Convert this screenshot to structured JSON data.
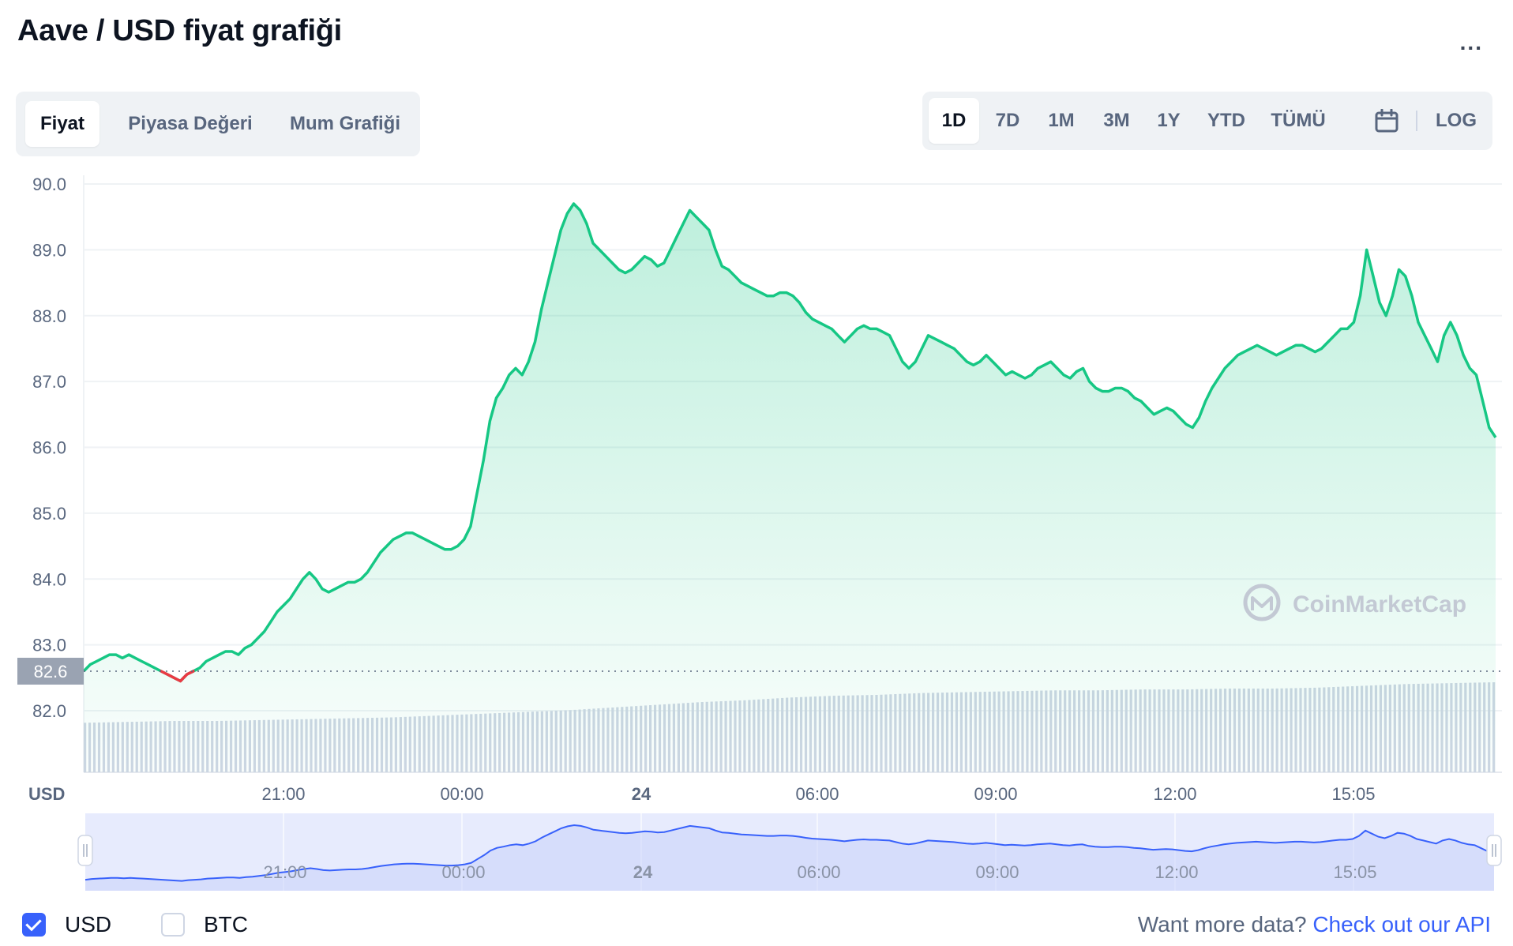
{
  "title": "Aave / USD fiyat grafiği",
  "more_label": "...",
  "view_tabs": [
    {
      "label": "Fiyat",
      "active": true
    },
    {
      "label": "Piyasa Değeri",
      "active": false
    },
    {
      "label": "Mum Grafiği",
      "active": false
    }
  ],
  "range_tabs": [
    {
      "label": "1D",
      "active": true
    },
    {
      "label": "7D",
      "active": false
    },
    {
      "label": "1M",
      "active": false
    },
    {
      "label": "3M",
      "active": false
    },
    {
      "label": "1Y",
      "active": false
    },
    {
      "label": "YTD",
      "active": false
    },
    {
      "label": "TÜMÜ",
      "active": false
    }
  ],
  "calendar_icon": "calendar-icon",
  "log_label": "LOG",
  "watermark": "CoinMarketCap",
  "colors": {
    "line": "#16c784",
    "down": "#ea3943",
    "volume": "#cfd6e4",
    "nav_line": "#3861fb",
    "nav_fill": "#e3e7fd",
    "accent": "#3861fb"
  },
  "chart_data": {
    "type": "line",
    "y_unit": "USD",
    "ylim": [
      82.0,
      90.0
    ],
    "y_ticks": [
      "90.0",
      "89.0",
      "88.0",
      "87.0",
      "86.0",
      "85.0",
      "84.0",
      "83.0",
      "82.0"
    ],
    "x_ticks": [
      "21:00",
      "00:00",
      "24",
      "06:00",
      "09:00",
      "12:00",
      "15:05"
    ],
    "open_price": 82.6,
    "open_label": "82.6",
    "grid": true,
    "series": [
      {
        "values": [
          82.6,
          82.7,
          82.75,
          82.8,
          82.85,
          82.85,
          82.8,
          82.85,
          82.8,
          82.75,
          82.7,
          82.65,
          82.6,
          82.55,
          82.5,
          82.45,
          82.55,
          82.6,
          82.65,
          82.75,
          82.8,
          82.85,
          82.9,
          82.9,
          82.85,
          82.95,
          83.0,
          83.1,
          83.2,
          83.35,
          83.5,
          83.6,
          83.7,
          83.85,
          84.0,
          84.1,
          84.0,
          83.85,
          83.8,
          83.85,
          83.9,
          83.95,
          83.95,
          84.0,
          84.1,
          84.25,
          84.4,
          84.5,
          84.6,
          84.65,
          84.7,
          84.7,
          84.65,
          84.6,
          84.55,
          84.5,
          84.45,
          84.45,
          84.5,
          84.6,
          84.8,
          85.3,
          85.8,
          86.4,
          86.75,
          86.9,
          87.1,
          87.2,
          87.1,
          87.3,
          87.6,
          88.1,
          88.5,
          88.9,
          89.3,
          89.55,
          89.7,
          89.6,
          89.4,
          89.1,
          89.0,
          88.9,
          88.8,
          88.7,
          88.65,
          88.7,
          88.8,
          88.9,
          88.85,
          88.75,
          88.8,
          89.0,
          89.2,
          89.4,
          89.6,
          89.5,
          89.4,
          89.3,
          89.0,
          88.75,
          88.7,
          88.6,
          88.5,
          88.45,
          88.4,
          88.35,
          88.3,
          88.3,
          88.35,
          88.35,
          88.3,
          88.2,
          88.05,
          87.95,
          87.9,
          87.85,
          87.8,
          87.7,
          87.6,
          87.7,
          87.8,
          87.85,
          87.8,
          87.8,
          87.75,
          87.7,
          87.5,
          87.3,
          87.2,
          87.3,
          87.5,
          87.7,
          87.65,
          87.6,
          87.55,
          87.5,
          87.4,
          87.3,
          87.25,
          87.3,
          87.4,
          87.3,
          87.2,
          87.1,
          87.15,
          87.1,
          87.05,
          87.1,
          87.2,
          87.25,
          87.3,
          87.2,
          87.1,
          87.05,
          87.15,
          87.2,
          87.0,
          86.9,
          86.85,
          86.85,
          86.9,
          86.9,
          86.85,
          86.75,
          86.7,
          86.6,
          86.5,
          86.55,
          86.6,
          86.55,
          86.45,
          86.35,
          86.3,
          86.45,
          86.7,
          86.9,
          87.05,
          87.2,
          87.3,
          87.4,
          87.45,
          87.5,
          87.55,
          87.5,
          87.45,
          87.4,
          87.45,
          87.5,
          87.55,
          87.55,
          87.5,
          87.45,
          87.5,
          87.6,
          87.7,
          87.8,
          87.8,
          87.9,
          88.3,
          89.0,
          88.6,
          88.2,
          88.0,
          88.3,
          88.7,
          88.6,
          88.3,
          87.9,
          87.7,
          87.5,
          87.3,
          87.7,
          87.9,
          87.7,
          87.4,
          87.2,
          87.1,
          86.7,
          86.3,
          86.15
        ]
      }
    ],
    "volume_relative": [
      0.55,
      0.56,
      0.57,
      0.57,
      0.58,
      0.59,
      0.6,
      0.61,
      0.63,
      0.65,
      0.67,
      0.69,
      0.72,
      0.75,
      0.78,
      0.8,
      0.83,
      0.85,
      0.86,
      0.88,
      0.89,
      0.9,
      0.91,
      0.91,
      0.92,
      0.92,
      0.93,
      0.93,
      0.94,
      0.96,
      0.98,
      0.99,
      1.0
    ],
    "navigator_ticks": [
      "21:00",
      "00:00",
      "24",
      "06:00",
      "09:00",
      "12:00",
      "15:05"
    ]
  },
  "footer": {
    "usd_label": "USD",
    "btc_label": "BTC",
    "api_text": "Want more data?",
    "api_link": "Check out our API"
  }
}
